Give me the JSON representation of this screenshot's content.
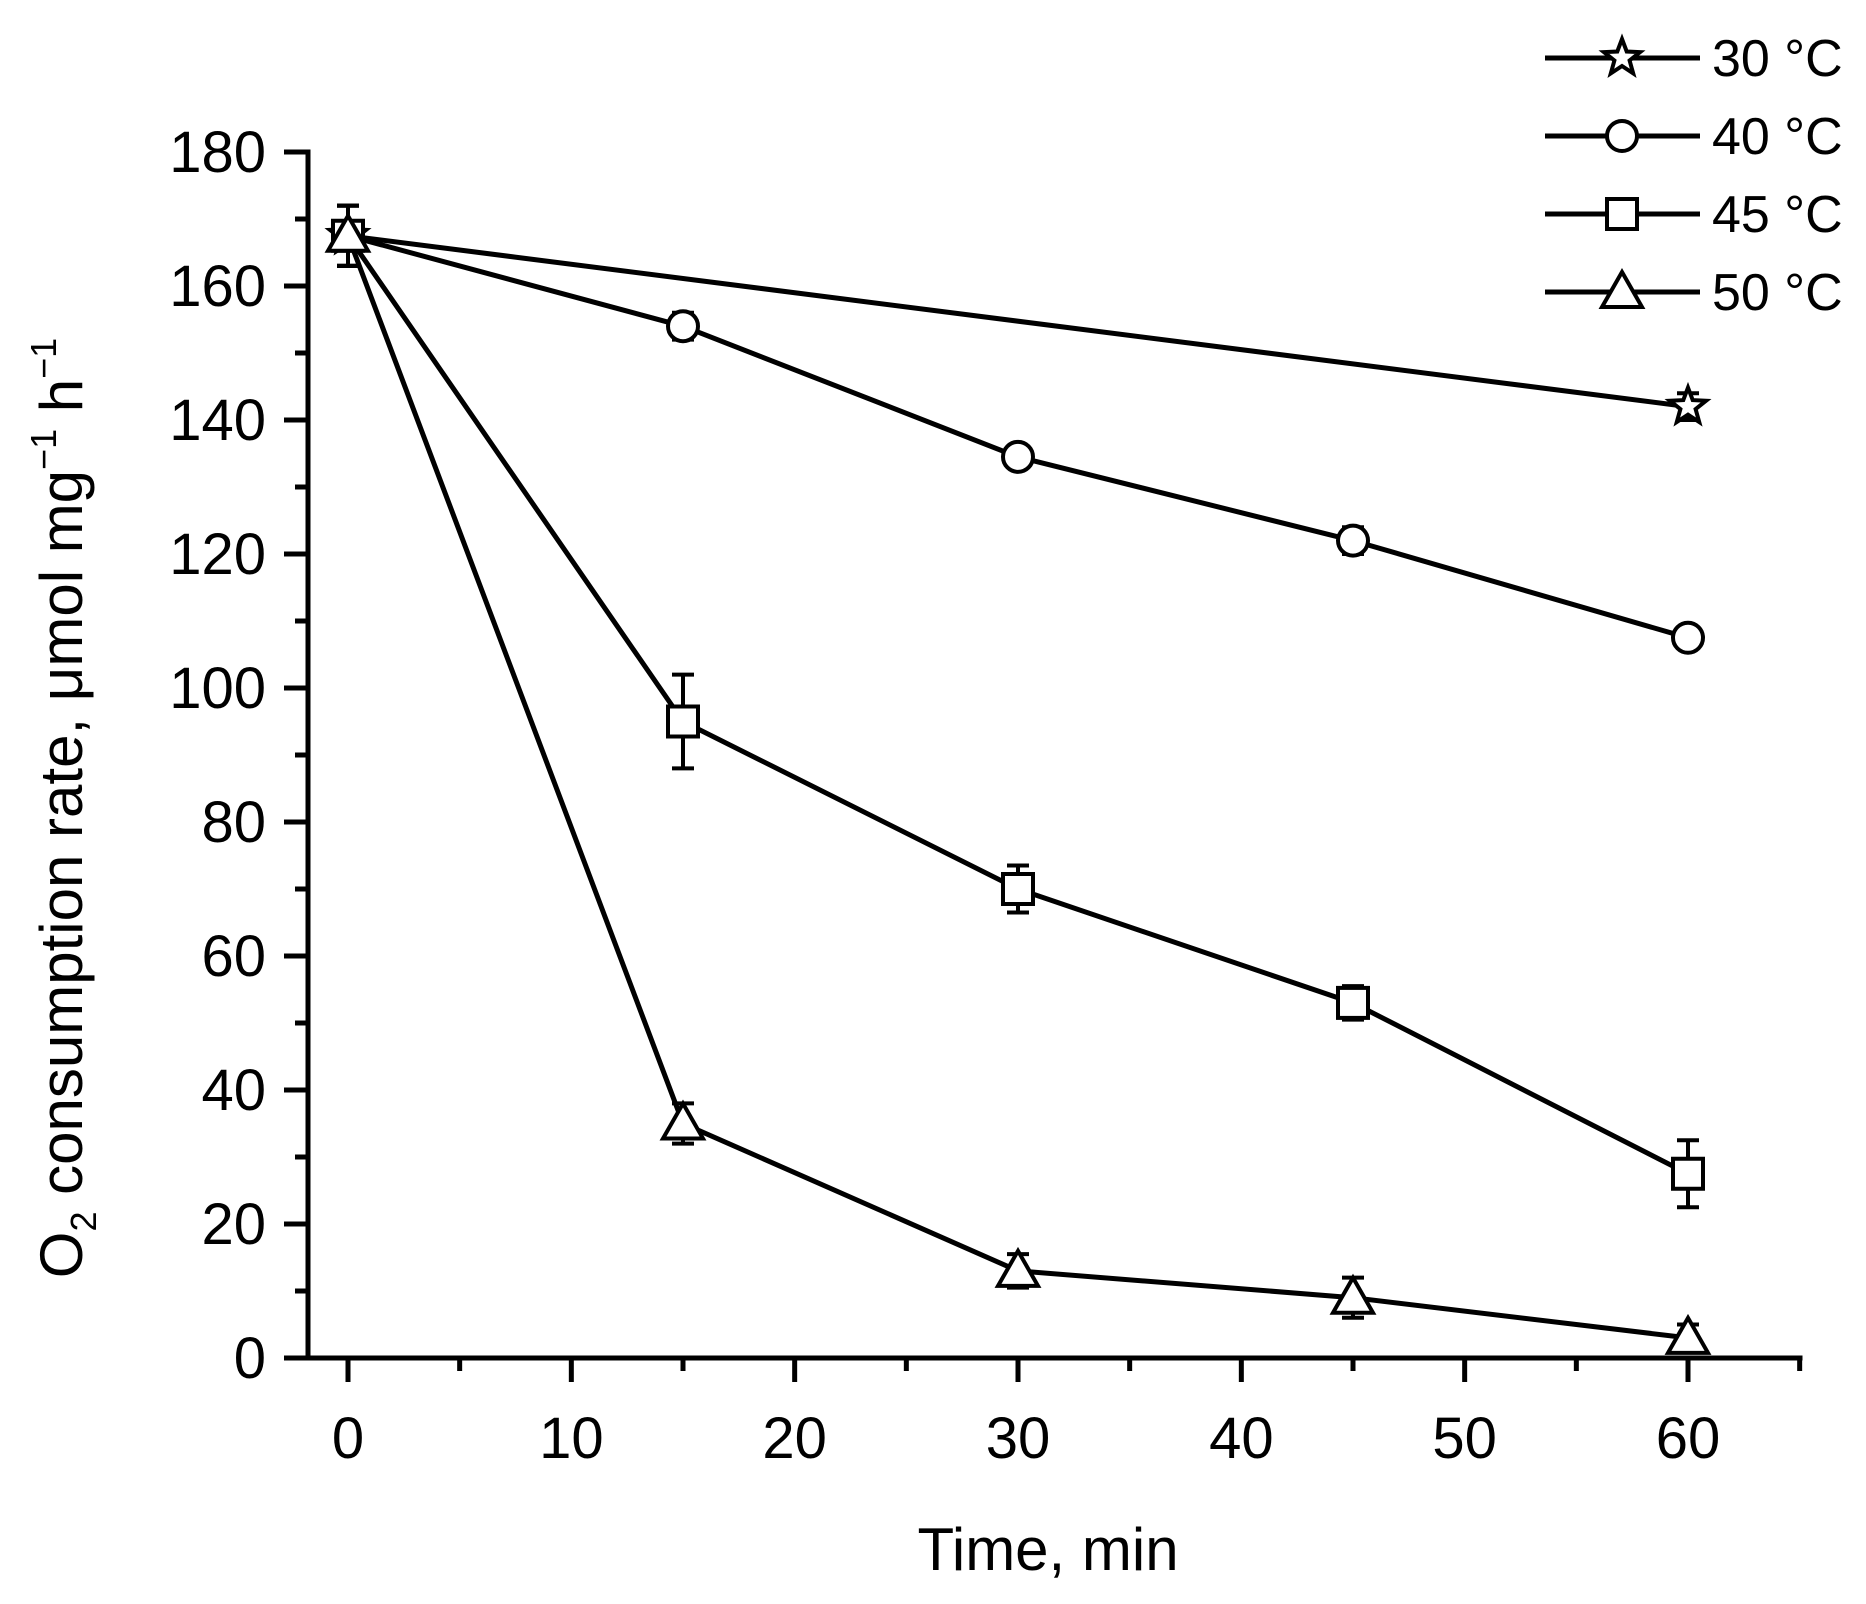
{
  "chart_data": {
    "type": "line",
    "title": "",
    "xlabel": "Time, min",
    "ylabel": {
      "o": "O",
      "sub": "2",
      "mid": " consumption rate, μmol mg",
      "sup1": "−1",
      "h": " h",
      "sup2": "−1"
    },
    "xlim": [
      -2,
      65
    ],
    "ylim": [
      0,
      180
    ],
    "xticks": [
      0,
      10,
      20,
      30,
      40,
      50,
      60
    ],
    "yticks": [
      0,
      20,
      40,
      60,
      80,
      100,
      120,
      140,
      160,
      180
    ],
    "legend_position": "top-right",
    "series": [
      {
        "name": "30 °C",
        "marker": "star",
        "x": [
          0,
          60
        ],
        "y": [
          167.5,
          142
        ],
        "err": [
          4.5,
          2
        ]
      },
      {
        "name": "40 °C",
        "marker": "circle",
        "x": [
          0,
          15,
          30,
          45,
          60
        ],
        "y": [
          167.5,
          154,
          134.5,
          122,
          107.5
        ],
        "err": [
          4.5,
          2,
          1.5,
          2,
          1.5
        ]
      },
      {
        "name": "45 °C",
        "marker": "square",
        "x": [
          0,
          15,
          30,
          45,
          60
        ],
        "y": [
          167.5,
          95,
          70,
          53,
          27.5
        ],
        "err": [
          4.5,
          7,
          3.5,
          2.5,
          5
        ]
      },
      {
        "name": "50 °C",
        "marker": "triangle",
        "x": [
          0,
          15,
          30,
          45,
          60
        ],
        "y": [
          167.5,
          35,
          13,
          9,
          3
        ],
        "err": [
          4.5,
          3,
          2.5,
          3,
          2
        ]
      }
    ]
  }
}
